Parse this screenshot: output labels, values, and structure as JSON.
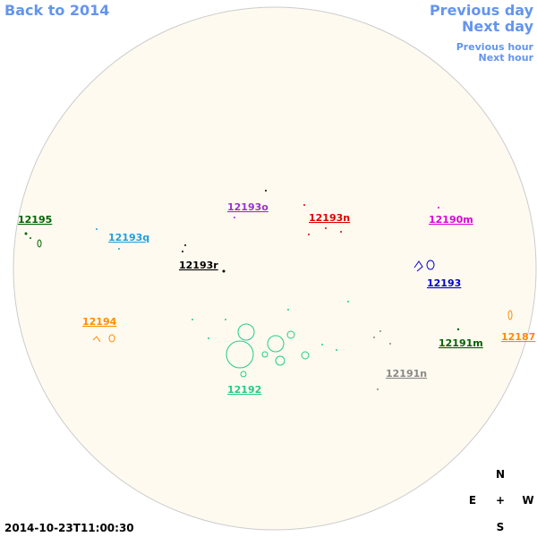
{
  "navigation": {
    "back": "Back to 2014",
    "previous_day": "Previous day",
    "next_day": "Next day",
    "previous_hour": "Previous hour",
    "next_hour": "Next hour"
  },
  "timestamp": "2014-10-23T11:00:30",
  "compass": {
    "north": "N",
    "east": "E",
    "center": "+",
    "west": "W",
    "south": "S"
  },
  "regions": [
    {
      "label": "12195",
      "color": "#006400"
    },
    {
      "label": "12193q",
      "color": "#1ea0e0"
    },
    {
      "label": "12193o",
      "color": "#9932cc"
    },
    {
      "label": "12193n",
      "color": "#dd0000"
    },
    {
      "label": "12190m",
      "color": "#dd00dd"
    },
    {
      "label": "12193r",
      "color": "#000000"
    },
    {
      "label": "12193",
      "color": "#0000cc"
    },
    {
      "label": "12194",
      "color": "#ff8c00"
    },
    {
      "label": "12192",
      "color": "#22cc88"
    },
    {
      "label": "12191m",
      "color": "#006400"
    },
    {
      "label": "12187",
      "color": "#ff8c00"
    },
    {
      "label": "12191n",
      "color": "#888888"
    }
  ]
}
